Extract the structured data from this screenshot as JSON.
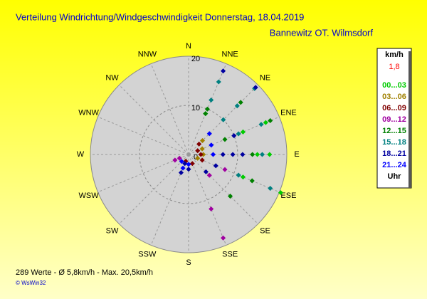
{
  "chart_data": {
    "type": "polar_scatter",
    "title": "Verteilung Windrichtung/Windgeschwindigkeit  Donnerstag, 18.04.2019",
    "subtitle": "Bannewitz OT. Wilmsdorf",
    "legend_title": "km/h",
    "legend_value": {
      "value": 1.8,
      "label": "1,8"
    },
    "legend_value_color": "#ff0000",
    "legend_footer": "Uhr",
    "footer": "289 Werte   -   Ø 5,8km/h  -  Max. 20,5km/h",
    "credit": "© WsWin32",
    "direction_labels": [
      "N",
      "NNE",
      "NE",
      "ENE",
      "E",
      "ESE",
      "SE",
      "SSE",
      "S",
      "SSW",
      "SW",
      "WSW",
      "W",
      "WNW",
      "NW",
      "NNW"
    ],
    "rlim": [
      0,
      20
    ],
    "rticks": [
      0,
      10,
      20
    ],
    "series": [
      {
        "name": "00...03",
        "color": "#00cc00",
        "directions": [
          67.5,
          67.5,
          90,
          90,
          112.5,
          112.5,
          22.5
        ],
        "values": [
          17,
          12,
          16.5,
          14,
          20.3,
          12,
          9
        ]
      },
      {
        "name": "03...06",
        "color": "#a08000",
        "directions": [
          45,
          67.5,
          90,
          112.5
        ],
        "values": [
          4,
          3,
          3,
          2
        ]
      },
      {
        "name": "06...09",
        "color": "#800000",
        "directions": [
          45,
          67.5,
          90,
          112.5,
          157.5,
          202.5
        ],
        "values": [
          3,
          2,
          2.5,
          3,
          2,
          1.5
        ]
      },
      {
        "name": "09...12",
        "color": "#a000a0",
        "directions": [
          157.5,
          157.5,
          135,
          112.5,
          247.5,
          247.5
        ],
        "values": [
          18.4,
          12,
          6,
          8,
          2,
          3
        ]
      },
      {
        "name": "12...15",
        "color": "#008000",
        "directions": [
          22.5,
          22.5,
          45,
          67.5,
          67.5,
          90,
          112.5,
          135
        ],
        "values": [
          10,
          9,
          15,
          18,
          8,
          13,
          14,
          12
        ]
      },
      {
        "name": "15...18",
        "color": "#008080",
        "directions": [
          22.5,
          22.5,
          45,
          45,
          45,
          67.5,
          67.5,
          90,
          112.5,
          112.5
        ],
        "values": [
          16,
          12,
          19,
          14,
          10,
          16,
          11,
          15,
          18,
          11
        ]
      },
      {
        "name": "18...21",
        "color": "#0000a0",
        "directions": [
          22.5,
          45,
          67.5,
          90,
          90,
          90,
          112.5,
          135,
          180,
          202.5,
          202.5
        ],
        "values": [
          18.4,
          19.3,
          10,
          11,
          9,
          7,
          6,
          5,
          3,
          2,
          4
        ]
      },
      {
        "name": "21...24",
        "color": "#0000ff",
        "directions": [
          45,
          67.5,
          90,
          180,
          202.5,
          225
        ],
        "values": [
          6,
          5,
          5,
          2,
          3,
          2
        ]
      }
    ]
  }
}
